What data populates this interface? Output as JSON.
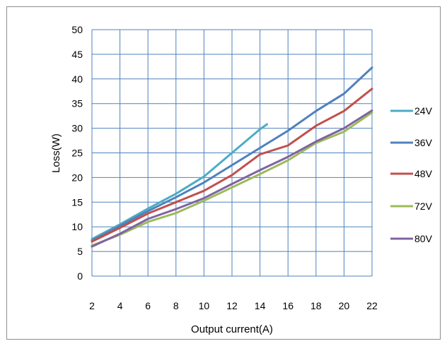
{
  "chart_data": {
    "type": "line",
    "title": "",
    "xlabel": "Output current(A)",
    "ylabel": "Loss(W)",
    "xlim": [
      2,
      22
    ],
    "ylim": [
      0,
      50
    ],
    "x_ticks": [
      2,
      4,
      6,
      8,
      10,
      12,
      14,
      16,
      18,
      20,
      22
    ],
    "y_ticks": [
      0,
      5,
      10,
      15,
      20,
      25,
      30,
      35,
      40,
      45,
      50
    ],
    "grid": true,
    "legend_position": "right",
    "series": [
      {
        "name": "24V",
        "color": "#4bacc6",
        "points": [
          [
            2,
            7.5
          ],
          [
            4,
            10.5
          ],
          [
            6,
            13.7
          ],
          [
            8,
            16.7
          ],
          [
            10,
            20.2
          ],
          [
            12,
            25
          ],
          [
            14,
            29.8
          ],
          [
            14.5,
            30.8
          ]
        ]
      },
      {
        "name": "36V",
        "color": "#4f81bd",
        "points": [
          [
            2,
            7.2
          ],
          [
            4,
            10.2
          ],
          [
            6,
            13.2
          ],
          [
            8,
            16
          ],
          [
            10,
            19
          ],
          [
            12,
            22.5
          ],
          [
            14,
            26
          ],
          [
            16,
            29.5
          ],
          [
            18,
            33.5
          ],
          [
            20,
            37
          ],
          [
            22,
            42.3
          ]
        ]
      },
      {
        "name": "48V",
        "color": "#c0504d",
        "points": [
          [
            2,
            7
          ],
          [
            4,
            9.8
          ],
          [
            6,
            12.7
          ],
          [
            8,
            15
          ],
          [
            10,
            17.3
          ],
          [
            12,
            20.5
          ],
          [
            14,
            24.7
          ],
          [
            16,
            26.5
          ],
          [
            18,
            30.5
          ],
          [
            20,
            33.5
          ],
          [
            22,
            38
          ]
        ]
      },
      {
        "name": "72V",
        "color": "#9bbb59",
        "points": [
          [
            2,
            6.2
          ],
          [
            4,
            8.4
          ],
          [
            6,
            11
          ],
          [
            8,
            12.8
          ],
          [
            10,
            15.3
          ],
          [
            12,
            18
          ],
          [
            14,
            20.7
          ],
          [
            16,
            23.5
          ],
          [
            18,
            27
          ],
          [
            20,
            29.3
          ],
          [
            22,
            33.2
          ]
        ]
      },
      {
        "name": "80V",
        "color": "#8064a2",
        "points": [
          [
            2,
            6
          ],
          [
            4,
            8.6
          ],
          [
            6,
            11.6
          ],
          [
            8,
            13.6
          ],
          [
            10,
            15.8
          ],
          [
            12,
            18.7
          ],
          [
            14,
            21.5
          ],
          [
            16,
            24.2
          ],
          [
            18,
            27.3
          ],
          [
            20,
            30
          ],
          [
            22,
            33.6
          ]
        ]
      }
    ]
  }
}
